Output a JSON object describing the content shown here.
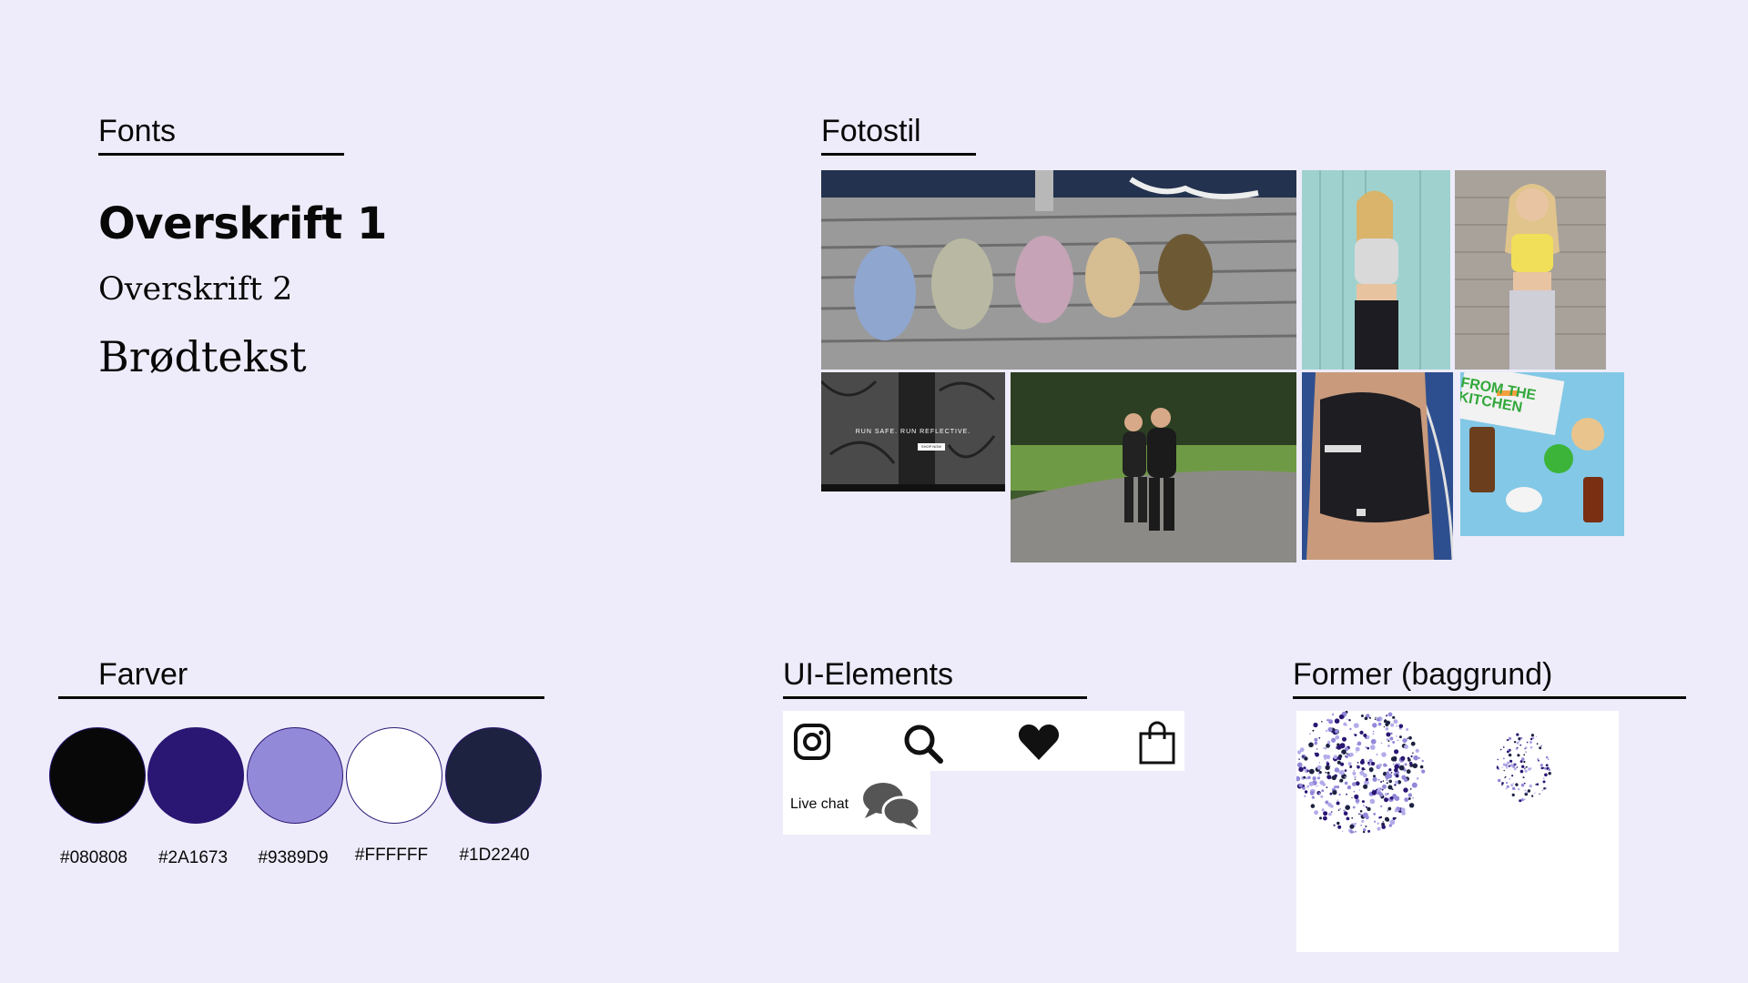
{
  "fonts": {
    "heading": "Fonts",
    "h1": "Overskrift 1",
    "h2": "Overskrift 2",
    "body": "Brødtekst"
  },
  "photos": {
    "heading": "Fotostil",
    "items": [
      {
        "alt": "hair claws on dock"
      },
      {
        "alt": "woman leaning on wall"
      },
      {
        "alt": "woman in yellow top"
      },
      {
        "alt": "run safe banner",
        "overlay_text": "RUN SAFE. RUN REFLECTIVE.",
        "button_text": "SHOP NOW"
      },
      {
        "alt": "women running in park"
      },
      {
        "alt": "sports bra close-up"
      },
      {
        "alt": "cosmetics flat lay",
        "overlay_text": "FROM THE KITCHEN"
      }
    ]
  },
  "colors": {
    "heading": "Farver",
    "swatches": [
      {
        "hex": "#080808",
        "label": "#080808"
      },
      {
        "hex": "#2A1673",
        "label": "#2A1673"
      },
      {
        "hex": "#9389D9",
        "label": "#9389D9"
      },
      {
        "hex": "#FFFFFF",
        "label": "#FFFFFF"
      },
      {
        "hex": "#1D2240",
        "label": "#1D2240"
      }
    ]
  },
  "ui_elements": {
    "heading": "UI-Elements",
    "icons": [
      "instagram-icon",
      "search-icon",
      "heart-icon",
      "shopping-bag-icon",
      "chat-bubbles-icon"
    ],
    "live_chat_label": "Live chat"
  },
  "shapes": {
    "heading": "Former (baggrund)"
  }
}
